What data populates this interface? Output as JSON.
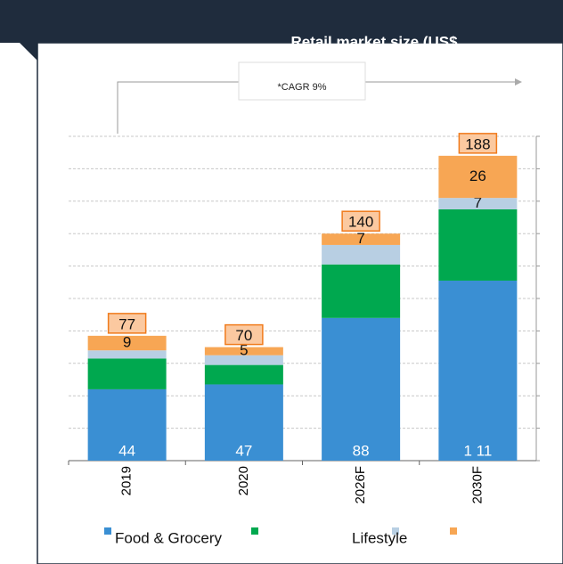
{
  "chart_data": {
    "type": "stacked_bar",
    "title": "Retail market size (US$",
    "annotation": "*CAGR 9%",
    "categories": [
      "2019",
      "2020",
      "2026F",
      "2030F"
    ],
    "series": [
      {
        "name": "Food & Grocery",
        "color": "#3a8fd3",
        "values": [
          44,
          47,
          88,
          111
        ],
        "value_labels": [
          "44",
          "47",
          "88",
          "1 11"
        ]
      },
      {
        "name": "Lifestyle",
        "color": "#00a84f",
        "values": [
          19,
          12,
          33,
          44
        ]
      },
      {
        "color": "#b8cfe3",
        "values": [
          5,
          6,
          12,
          7
        ],
        "value_labels": [
          null,
          null,
          null,
          "7"
        ]
      },
      {
        "color": "#f7a654",
        "values": [
          9,
          5,
          7,
          26
        ],
        "value_labels": [
          "9",
          "5",
          "7",
          "26"
        ]
      }
    ],
    "totals": [
      77,
      70,
      140,
      188
    ],
    "ylim": [
      0,
      200
    ],
    "yticks": [
      0,
      20,
      40,
      60,
      80,
      100,
      120,
      140,
      160,
      180,
      200
    ],
    "grid": true
  }
}
